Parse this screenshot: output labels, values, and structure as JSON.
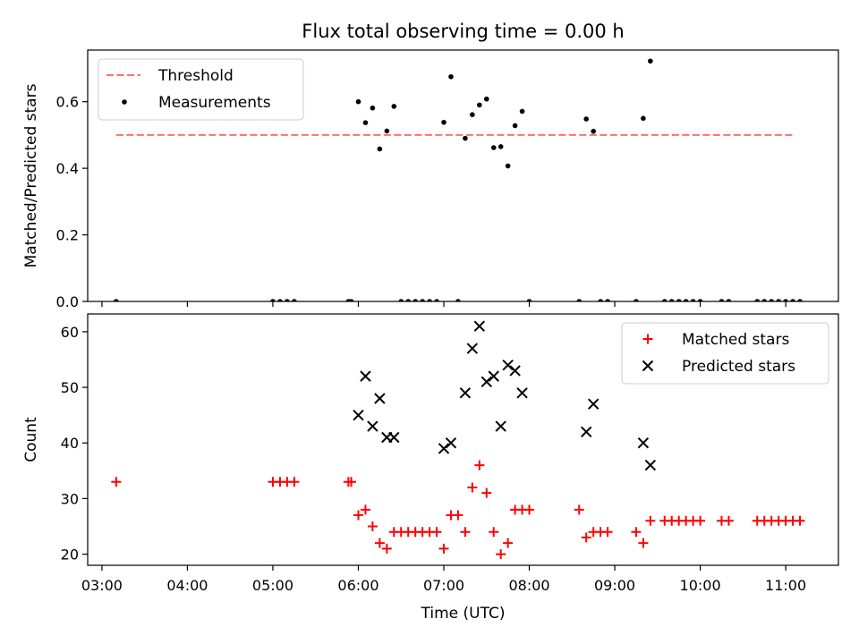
{
  "chart_data": [
    {
      "type": "scatter",
      "title": "Flux total observing time = 0.00 h",
      "xlabel": "",
      "ylabel": "Matched/Predicted stars",
      "xlim": [
        "02:50",
        "11:37"
      ],
      "ylim": [
        0,
        0.755
      ],
      "xticks": [
        "03:00",
        "04:00",
        "05:00",
        "06:00",
        "07:00",
        "08:00",
        "09:00",
        "10:00",
        "11:00"
      ],
      "yticks": [
        0.0,
        0.2,
        0.4,
        0.6
      ],
      "ytick_labels": [
        "0.0",
        "0.2",
        "0.4",
        "0.6"
      ],
      "show_xtick_labels": false,
      "legend_position": "upper left",
      "threshold": {
        "name": "Threshold",
        "value": 0.5,
        "x_start": "03:10",
        "x_end": "11:05",
        "color": "#ff6f6f",
        "style": "dashed"
      },
      "series": [
        {
          "name": "Measurements",
          "marker": "dot",
          "color": "#000000",
          "points": [
            [
              "03:10",
              0.0
            ],
            [
              "05:00",
              0.0
            ],
            [
              "05:05",
              0.0
            ],
            [
              "05:10",
              0.0
            ],
            [
              "05:15",
              0.0
            ],
            [
              "05:53",
              0.0
            ],
            [
              "05:55",
              0.0
            ],
            [
              "06:00",
              0.6
            ],
            [
              "06:05",
              0.537
            ],
            [
              "06:10",
              0.581
            ],
            [
              "06:15",
              0.458
            ],
            [
              "06:20",
              0.512
            ],
            [
              "06:25",
              0.586
            ],
            [
              "06:30",
              0.0
            ],
            [
              "06:35",
              0.0
            ],
            [
              "06:40",
              0.0
            ],
            [
              "06:45",
              0.0
            ],
            [
              "06:50",
              0.0
            ],
            [
              "06:55",
              0.0
            ],
            [
              "07:00",
              0.538
            ],
            [
              "07:05",
              0.675
            ],
            [
              "07:10",
              0.0
            ],
            [
              "07:15",
              0.49
            ],
            [
              "07:20",
              0.561
            ],
            [
              "07:25",
              0.59
            ],
            [
              "07:30",
              0.608
            ],
            [
              "07:35",
              0.462
            ],
            [
              "07:40",
              0.465
            ],
            [
              "07:45",
              0.407
            ],
            [
              "07:50",
              0.528
            ],
            [
              "07:55",
              0.571
            ],
            [
              "08:00",
              0.0
            ],
            [
              "08:35",
              0.0
            ],
            [
              "08:40",
              0.548
            ],
            [
              "08:45",
              0.511
            ],
            [
              "08:50",
              0.0
            ],
            [
              "08:55",
              0.0
            ],
            [
              "09:15",
              0.0
            ],
            [
              "09:20",
              0.55
            ],
            [
              "09:25",
              0.722
            ],
            [
              "09:35",
              0.0
            ],
            [
              "09:40",
              0.0
            ],
            [
              "09:45",
              0.0
            ],
            [
              "09:50",
              0.0
            ],
            [
              "09:55",
              0.0
            ],
            [
              "10:00",
              0.0
            ],
            [
              "10:15",
              0.0
            ],
            [
              "10:20",
              0.0
            ],
            [
              "10:40",
              0.0
            ],
            [
              "10:45",
              0.0
            ],
            [
              "10:50",
              0.0
            ],
            [
              "10:55",
              0.0
            ],
            [
              "11:00",
              0.0
            ],
            [
              "11:05",
              0.0
            ],
            [
              "11:10",
              0.0
            ]
          ]
        }
      ]
    },
    {
      "type": "scatter",
      "title": "",
      "xlabel": "Time (UTC)",
      "ylabel": "Count",
      "xlim": [
        "02:50",
        "11:37"
      ],
      "ylim": [
        18,
        63.2
      ],
      "xticks": [
        "03:00",
        "04:00",
        "05:00",
        "06:00",
        "07:00",
        "08:00",
        "09:00",
        "10:00",
        "11:00"
      ],
      "yticks": [
        20,
        30,
        40,
        50,
        60
      ],
      "ytick_labels": [
        "20",
        "30",
        "40",
        "50",
        "60"
      ],
      "show_xtick_labels": true,
      "legend_position": "upper right",
      "series": [
        {
          "name": "Matched stars",
          "marker": "plus",
          "color": "#ff0000",
          "points": [
            [
              "03:10",
              33
            ],
            [
              "05:00",
              33
            ],
            [
              "05:05",
              33
            ],
            [
              "05:10",
              33
            ],
            [
              "05:15",
              33
            ],
            [
              "05:53",
              33
            ],
            [
              "05:55",
              33
            ],
            [
              "06:00",
              27
            ],
            [
              "06:05",
              28
            ],
            [
              "06:10",
              25
            ],
            [
              "06:15",
              22
            ],
            [
              "06:20",
              21
            ],
            [
              "06:25",
              24
            ],
            [
              "06:30",
              24
            ],
            [
              "06:35",
              24
            ],
            [
              "06:40",
              24
            ],
            [
              "06:45",
              24
            ],
            [
              "06:50",
              24
            ],
            [
              "06:55",
              24
            ],
            [
              "07:00",
              21
            ],
            [
              "07:05",
              27
            ],
            [
              "07:10",
              27
            ],
            [
              "07:15",
              24
            ],
            [
              "07:20",
              32
            ],
            [
              "07:25",
              36
            ],
            [
              "07:30",
              31
            ],
            [
              "07:35",
              24
            ],
            [
              "07:40",
              20
            ],
            [
              "07:45",
              22
            ],
            [
              "07:50",
              28
            ],
            [
              "07:55",
              28
            ],
            [
              "08:00",
              28
            ],
            [
              "08:35",
              28
            ],
            [
              "08:40",
              23
            ],
            [
              "08:45",
              24
            ],
            [
              "08:50",
              24
            ],
            [
              "08:55",
              24
            ],
            [
              "09:15",
              24
            ],
            [
              "09:20",
              22
            ],
            [
              "09:25",
              26
            ],
            [
              "09:35",
              26
            ],
            [
              "09:40",
              26
            ],
            [
              "09:45",
              26
            ],
            [
              "09:50",
              26
            ],
            [
              "09:55",
              26
            ],
            [
              "10:00",
              26
            ],
            [
              "10:15",
              26
            ],
            [
              "10:20",
              26
            ],
            [
              "10:40",
              26
            ],
            [
              "10:45",
              26
            ],
            [
              "10:50",
              26
            ],
            [
              "10:55",
              26
            ],
            [
              "11:00",
              26
            ],
            [
              "11:05",
              26
            ],
            [
              "11:10",
              26
            ]
          ]
        },
        {
          "name": "Predicted stars",
          "marker": "x",
          "color": "#000000",
          "points": [
            [
              "06:00",
              45
            ],
            [
              "06:05",
              52
            ],
            [
              "06:10",
              43
            ],
            [
              "06:15",
              48
            ],
            [
              "06:20",
              41
            ],
            [
              "06:25",
              41
            ],
            [
              "07:00",
              39
            ],
            [
              "07:05",
              40
            ],
            [
              "07:15",
              49
            ],
            [
              "07:20",
              57
            ],
            [
              "07:25",
              61
            ],
            [
              "07:30",
              51
            ],
            [
              "07:35",
              52
            ],
            [
              "07:40",
              43
            ],
            [
              "07:45",
              54
            ],
            [
              "07:50",
              53
            ],
            [
              "07:55",
              49
            ],
            [
              "08:40",
              42
            ],
            [
              "08:45",
              47
            ],
            [
              "09:20",
              40
            ],
            [
              "09:25",
              36
            ]
          ]
        }
      ]
    }
  ]
}
